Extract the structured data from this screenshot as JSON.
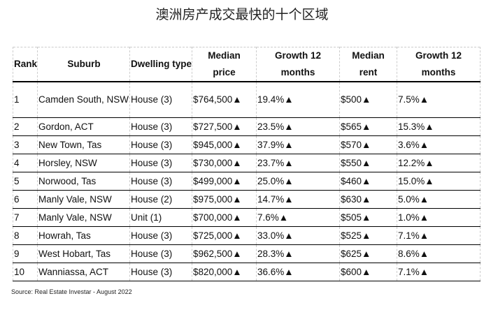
{
  "title": "澳洲房产成交最快的十个区域",
  "table": {
    "headers": [
      "Rank",
      "Suburb",
      "Dwelling type",
      "Median price",
      "Growth 12 months",
      "Median rent",
      "Growth 12 months"
    ],
    "rows": [
      [
        "1",
        "Camden South, NSW",
        "House (3)",
        "$764,500▲",
        "19.4%▲",
        "$500▲",
        "7.5%▲"
      ],
      [
        "2",
        "Gordon, ACT",
        "House (3)",
        "$727,500▲",
        "23.5%▲",
        "$565▲",
        "15.3%▲"
      ],
      [
        "3",
        "New Town, Tas",
        "House (3)",
        "$945,000▲",
        "37.9%▲",
        "$570▲",
        "3.6%▲"
      ],
      [
        "4",
        "Horsley, NSW",
        "House (3)",
        "$730,000▲",
        "23.7%▲",
        "$550▲",
        "12.2%▲"
      ],
      [
        "5",
        "Norwood, Tas",
        "House (3)",
        "$499,000▲",
        "25.0%▲",
        "$460▲",
        "15.0%▲"
      ],
      [
        "6",
        "Manly Vale, NSW",
        "House (2)",
        "$975,000▲",
        "14.7%▲",
        "$630▲",
        "5.0%▲"
      ],
      [
        "7",
        "Manly Vale, NSW",
        "Unit (1)",
        "$700,000▲",
        "7.6%▲",
        "$505▲",
        "1.0%▲"
      ],
      [
        "8",
        "Howrah, Tas",
        "House (3)",
        "$725,000▲",
        "33.0%▲",
        "$525▲",
        "7.1%▲"
      ],
      [
        "9",
        "West Hobart, Tas",
        "House (3)",
        "$962,500▲",
        "28.3%▲",
        "$625▲",
        "8.6%▲"
      ],
      [
        "10",
        "Wanniassa, ACT",
        "House (3)",
        "$820,000▲",
        "36.6%▲",
        "$600▲",
        "7.1%▲"
      ]
    ]
  },
  "source": "Source: Real Estate Investar - August 2022"
}
